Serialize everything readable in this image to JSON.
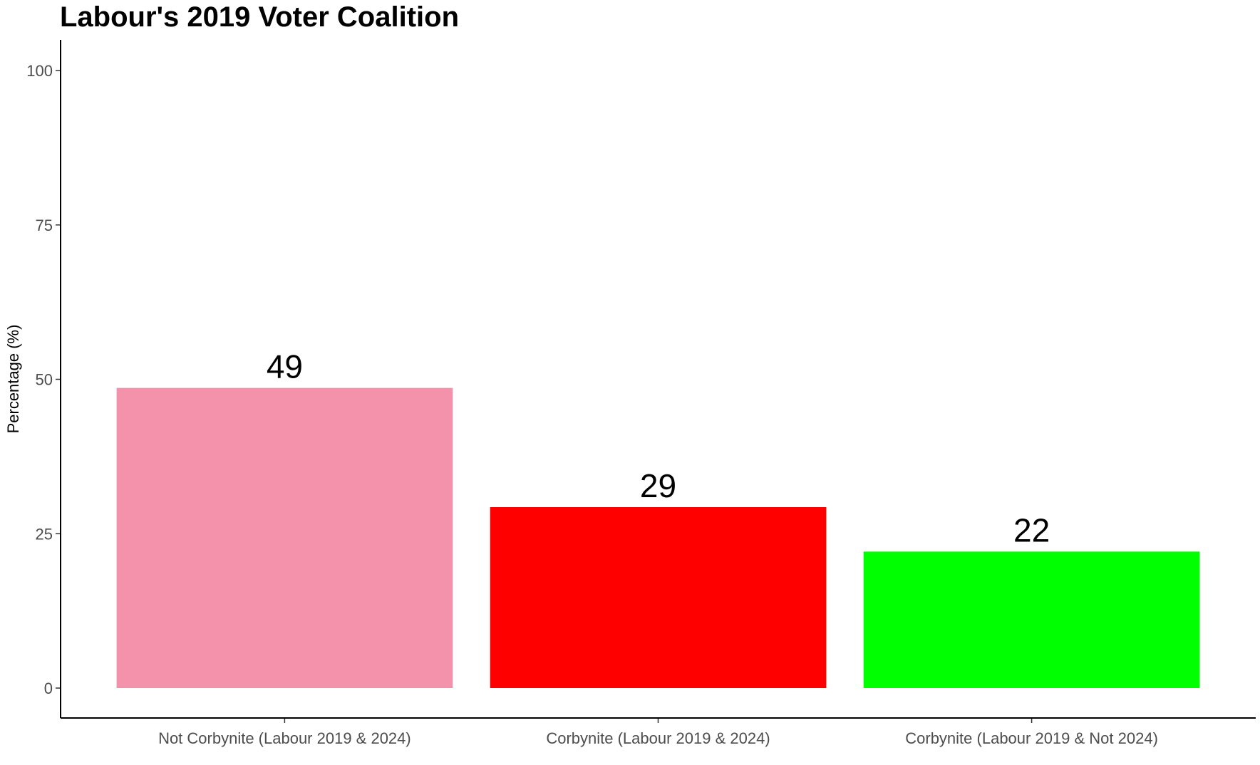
{
  "chart_data": {
    "type": "bar",
    "title": "Labour's 2019 Voter Coalition",
    "xlabel": "",
    "ylabel": "Percentage (%)",
    "categories": [
      "Not Corbynite (Labour 2019 & 2024)",
      "Corbynite (Labour 2019 & 2024)",
      "Corbynite (Labour 2019 & Not 2024)"
    ],
    "values": [
      48.6,
      29.3,
      22.1
    ],
    "data_labels": [
      "49",
      "29",
      "22"
    ],
    "colors": [
      "#F492AC",
      "#FF0000",
      "#00FF00"
    ],
    "ylim": [
      0,
      105
    ],
    "yticks": [
      0,
      25,
      50,
      75,
      100
    ],
    "ytick_labels": [
      "0",
      "25",
      "50",
      "75",
      "100"
    ],
    "grid": false,
    "legend": "none"
  }
}
